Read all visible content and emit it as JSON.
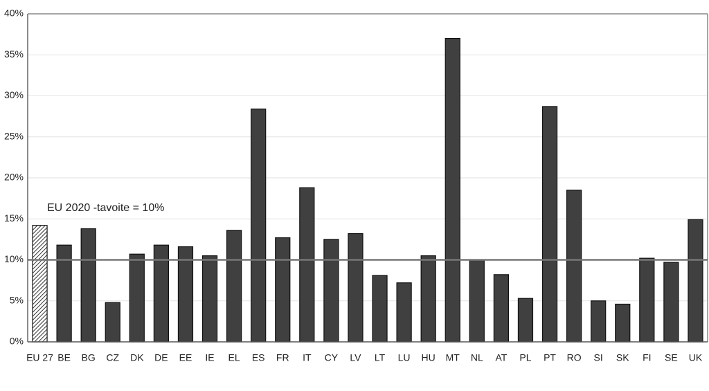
{
  "chart_data": {
    "type": "bar",
    "categories": [
      "EU 27",
      "BE",
      "BG",
      "CZ",
      "DK",
      "DE",
      "EE",
      "IE",
      "EL",
      "ES",
      "FR",
      "IT",
      "CY",
      "LV",
      "LT",
      "LU",
      "HU",
      "MT",
      "NL",
      "AT",
      "PL",
      "PT",
      "RO",
      "SI",
      "SK",
      "FI",
      "SE",
      "UK"
    ],
    "values": [
      14.2,
      11.8,
      13.8,
      4.8,
      10.7,
      11.8,
      11.6,
      10.5,
      13.6,
      28.4,
      12.7,
      18.8,
      12.5,
      13.2,
      8.1,
      7.2,
      10.5,
      37.0,
      10.0,
      8.2,
      5.3,
      28.7,
      18.5,
      5.0,
      4.6,
      10.2,
      9.7,
      14.9
    ],
    "color": "#404040",
    "hatch_index": 0,
    "ylim": [
      0,
      40
    ],
    "yticks": [
      {
        "value": 0,
        "label": "0%"
      },
      {
        "value": 5,
        "label": "5%"
      },
      {
        "value": 10,
        "label": "10%"
      },
      {
        "value": 15,
        "label": "15%"
      },
      {
        "value": 20,
        "label": "20%"
      },
      {
        "value": 25,
        "label": "25%"
      },
      {
        "value": 30,
        "label": "30%"
      },
      {
        "value": 35,
        "label": "35%"
      },
      {
        "value": 40,
        "label": "40%"
      }
    ],
    "grid": true,
    "target": {
      "value": 10,
      "label": "EU 2020 -tavoite = 10%"
    }
  }
}
